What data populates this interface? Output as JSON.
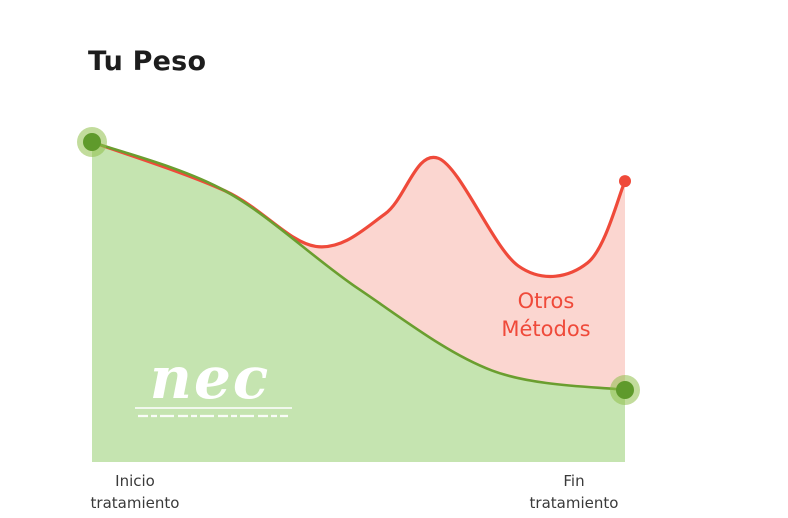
{
  "title": "Tu Peso",
  "colors": {
    "nec_line": "#6a9e2f",
    "nec_fill": "#c5e4b0",
    "other_line": "#ef4a3a",
    "other_fill": "#fbd6d0",
    "start_end_marker": "#8fc04a"
  },
  "chart_data": {
    "type": "area",
    "x_categories": [
      "Inicio tratamiento",
      "Fin tratamiento"
    ],
    "xtick_labels": [
      "Inicio\ntratamiento",
      "Fin\ntratamiento"
    ],
    "ylabel": "",
    "series": [
      {
        "name": "nec",
        "logo_text": "nec",
        "x": [
          0,
          0.25,
          0.5,
          0.75,
          1.0
        ],
        "y": [
          1.0,
          0.85,
          0.55,
          0.3,
          0.24
        ]
      },
      {
        "name": "Otros Métodos",
        "x": [
          0,
          0.25,
          0.42,
          0.55,
          0.65,
          0.8,
          0.93,
          1.0
        ],
        "y": [
          1.0,
          0.85,
          0.68,
          0.78,
          0.95,
          0.62,
          0.63,
          0.88
        ]
      }
    ],
    "annotations": [
      {
        "text": "Otros\nMétodos",
        "series": "Otros Métodos"
      }
    ],
    "grid": false,
    "legend": "none"
  }
}
